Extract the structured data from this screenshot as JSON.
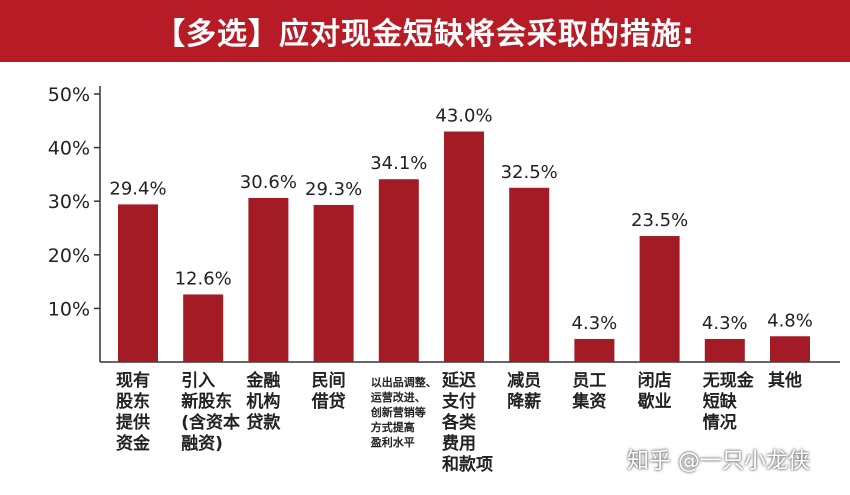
{
  "chart_data": {
    "type": "bar",
    "title": "【多选】应对现金短缺将会采取的措施:",
    "categories": [
      "现有股东提供资金",
      "引入新股东(含资本融资)",
      "金融机构贷款",
      "民间借贷",
      "以出品调整、运营改进、创新营销等方式提高盈利水平",
      "延迟支付各类费用和款项",
      "减员降薪",
      "员工集资",
      "闭店歇业",
      "无现金短缺情况",
      "其他"
    ],
    "category_lines": [
      [
        "现有",
        "股东",
        "提供",
        "资金"
      ],
      [
        "引入",
        "新股东",
        "(含资本",
        "融资)"
      ],
      [
        "金融",
        "机构",
        "贷款"
      ],
      [
        "民间",
        "借贷"
      ],
      [
        "以出品调整、",
        "运营改进、",
        "创新营销等",
        "方式提高",
        "盈利水平"
      ],
      [
        "延迟",
        "支付",
        "各类",
        "费用",
        "和款项"
      ],
      [
        "减员",
        "降薪"
      ],
      [
        "员工",
        "集资"
      ],
      [
        "闭店",
        "歇业"
      ],
      [
        "无现金",
        "短缺",
        "情况"
      ],
      [
        "其他"
      ]
    ],
    "values": [
      29.4,
      12.6,
      30.6,
      29.3,
      34.1,
      43.0,
      32.5,
      4.3,
      23.5,
      4.3,
      4.8
    ],
    "value_labels": [
      "29.4%",
      "12.6%",
      "30.6%",
      "29.3%",
      "34.1%",
      "43.0%",
      "32.5%",
      "4.3%",
      "23.5%",
      "4.3%",
      "4.8%"
    ],
    "yticks": [
      10,
      20,
      30,
      40,
      50
    ],
    "ytick_labels": [
      "10%",
      "20%",
      "30%",
      "40%",
      "50%"
    ],
    "ylim": [
      0,
      50
    ],
    "grid": false,
    "bar_color": "#a31b24",
    "header_color": "#b71c26"
  },
  "watermark": "知乎 @一只小龙侠"
}
